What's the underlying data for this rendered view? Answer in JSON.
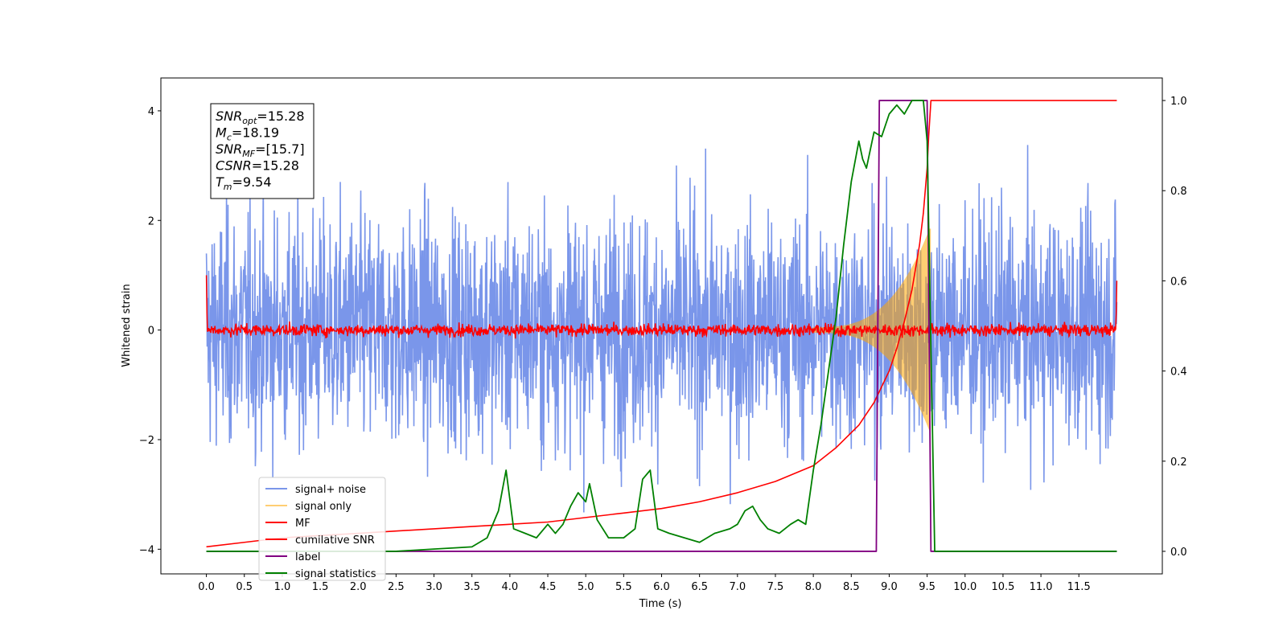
{
  "chart_data": {
    "type": "line",
    "title": "",
    "xlabel": "Time (s)",
    "ylabel": "Whitened strain",
    "xlim": [
      -0.6,
      12.6
    ],
    "ylim": [
      -4.45,
      4.6
    ],
    "ylim_right": [
      -0.05,
      1.05
    ],
    "xticks": [
      0.0,
      0.5,
      1.0,
      1.5,
      2.0,
      2.5,
      3.0,
      3.5,
      4.0,
      4.5,
      5.0,
      5.5,
      6.0,
      6.5,
      7.0,
      7.5,
      8.0,
      8.5,
      9.0,
      9.5,
      10.0,
      10.5,
      11.0,
      11.5
    ],
    "xtick_labels": [
      "0.0",
      "0.5",
      "1.0",
      "1.5",
      "2.0",
      "2.5",
      "3.0",
      "3.5",
      "4.0",
      "4.5",
      "5.0",
      "5.5",
      "6.0",
      "6.5",
      "7.0",
      "7.5",
      "8.0",
      "8.5",
      "9.0",
      "9.5",
      "10.0",
      "10.5",
      "11.0",
      "11.5"
    ],
    "yticks_left": [
      -4,
      -2,
      0,
      2,
      4
    ],
    "ytick_labels_left": [
      "−4",
      "−2",
      "0",
      "2",
      "4"
    ],
    "yticks_right": [
      0.0,
      0.2,
      0.4,
      0.6,
      0.8,
      1.0
    ],
    "ytick_labels_right": [
      "0.0",
      "0.2",
      "0.4",
      "0.6",
      "0.8",
      "1.0"
    ],
    "grid": false,
    "legend_position": "lower-left",
    "annotation": {
      "lines": [
        {
          "sym": "SNR",
          "sub": "opt",
          "rest": "=15.28"
        },
        {
          "sym": "M",
          "sub": "c",
          "rest": "=18.19"
        },
        {
          "sym": "SNR",
          "sub": "MF",
          "rest": "=[15.7]"
        },
        {
          "sym": "CSNR",
          "sub": "",
          "rest": "=15.28"
        },
        {
          "sym": "T",
          "sub": "m",
          "rest": "=9.54"
        }
      ]
    },
    "series": [
      {
        "name": "signal+ noise",
        "color": "#4169e1",
        "axis": "left",
        "kind": "noise",
        "x_range": [
          0.0,
          12.0
        ],
        "amplitude_range": [
          -4.0,
          4.0
        ]
      },
      {
        "name": "signal only",
        "color": "#ffa500",
        "axis": "left",
        "kind": "chirp",
        "x_range": [
          8.0,
          9.54
        ],
        "amplitude_peak": 1.8
      },
      {
        "name": "MF",
        "color": "#ff0000",
        "axis": "left",
        "kind": "mf",
        "x_range": [
          0.0,
          12.0
        ],
        "baseline": 0.0,
        "edge_value": 1.0
      },
      {
        "name": "cumilative SNR",
        "color": "#ff0000",
        "axis": "right",
        "x": [
          0.0,
          0.5,
          1.0,
          1.5,
          2.0,
          2.5,
          3.0,
          3.5,
          4.0,
          4.5,
          5.0,
          5.5,
          6.0,
          6.5,
          7.0,
          7.5,
          8.0,
          8.3,
          8.6,
          8.8,
          9.0,
          9.1,
          9.2,
          9.3,
          9.4,
          9.45,
          9.5,
          9.52,
          9.55,
          9.6,
          10.0,
          11.0,
          12.0
        ],
        "y": [
          0.01,
          0.02,
          0.03,
          0.035,
          0.04,
          0.045,
          0.05,
          0.055,
          0.06,
          0.065,
          0.075,
          0.085,
          0.095,
          0.11,
          0.13,
          0.155,
          0.19,
          0.23,
          0.28,
          0.33,
          0.4,
          0.45,
          0.51,
          0.58,
          0.68,
          0.75,
          0.85,
          0.92,
          1.0,
          1.0,
          1.0,
          1.0,
          1.0
        ]
      },
      {
        "name": "label",
        "color": "#800080",
        "axis": "right",
        "x": [
          0.0,
          8.83,
          8.87,
          9.5,
          9.55,
          12.0
        ],
        "y": [
          0.0,
          0.0,
          1.0,
          1.0,
          0.0,
          0.0
        ]
      },
      {
        "name": "signal statistics",
        "color": "#008000",
        "axis": "right",
        "x": [
          0.0,
          0.5,
          1.0,
          1.5,
          2.0,
          2.5,
          2.8,
          3.0,
          3.3,
          3.5,
          3.7,
          3.85,
          3.95,
          4.05,
          4.2,
          4.35,
          4.5,
          4.6,
          4.7,
          4.8,
          4.9,
          5.0,
          5.05,
          5.15,
          5.3,
          5.5,
          5.65,
          5.75,
          5.85,
          5.95,
          6.1,
          6.3,
          6.5,
          6.7,
          6.9,
          7.0,
          7.1,
          7.2,
          7.3,
          7.4,
          7.55,
          7.7,
          7.8,
          7.9,
          8.0,
          8.1,
          8.2,
          8.3,
          8.4,
          8.5,
          8.6,
          8.65,
          8.7,
          8.8,
          8.9,
          9.0,
          9.1,
          9.2,
          9.3,
          9.45,
          9.5,
          9.55,
          9.6,
          9.7,
          10.0,
          11.0,
          12.0
        ],
        "y": [
          0.0,
          0.0,
          0.0,
          0.0,
          0.0,
          0.0,
          0.003,
          0.005,
          0.008,
          0.01,
          0.03,
          0.09,
          0.18,
          0.05,
          0.04,
          0.03,
          0.06,
          0.04,
          0.06,
          0.1,
          0.13,
          0.11,
          0.15,
          0.07,
          0.03,
          0.03,
          0.05,
          0.16,
          0.18,
          0.05,
          0.04,
          0.03,
          0.02,
          0.04,
          0.05,
          0.06,
          0.09,
          0.1,
          0.07,
          0.05,
          0.04,
          0.06,
          0.07,
          0.06,
          0.18,
          0.28,
          0.4,
          0.52,
          0.68,
          0.82,
          0.91,
          0.87,
          0.85,
          0.93,
          0.92,
          0.97,
          0.99,
          0.97,
          1.0,
          1.0,
          0.91,
          0.45,
          0.0,
          0.0,
          0.0,
          0.0,
          0.0
        ]
      }
    ]
  }
}
